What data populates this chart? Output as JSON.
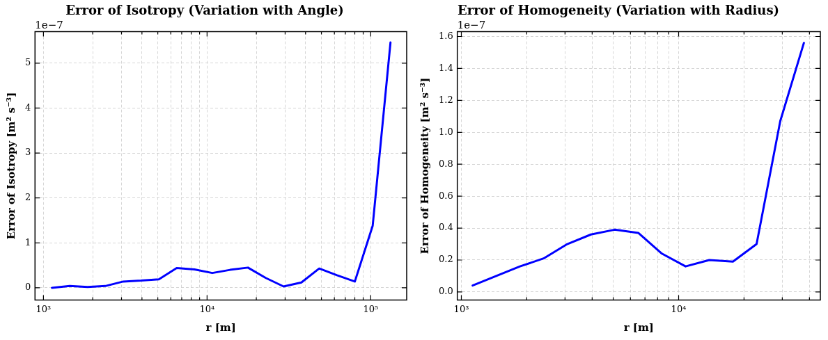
{
  "chart_data": [
    {
      "type": "line",
      "title": "Error of Isotropy (Variation with Angle)",
      "xlabel": "r [m]",
      "ylabel": "Error of Isotropy [m² s⁻³]",
      "annotations": [
        "1e−7"
      ],
      "x": [
        1127,
        1448,
        1861,
        2391,
        3073,
        3948,
        5074,
        6520,
        8378,
        10766,
        13834,
        17777,
        22844,
        29355,
        37721,
        48472,
        62287,
        80040,
        102851,
        132164
      ],
      "values": [
        0.0,
        0.04,
        0.02,
        0.04,
        0.14,
        0.16,
        0.19,
        0.44,
        0.41,
        0.33,
        0.4,
        0.45,
        0.22,
        0.03,
        0.12,
        0.43,
        0.28,
        0.14,
        1.38,
        5.46
      ],
      "color": "#0000ff",
      "log": "x",
      "grid": true,
      "xlim": [
        888,
        166000
      ],
      "xticks": [
        {
          "value": 1000,
          "label": "10³"
        },
        {
          "value": 2000,
          "label": null
        },
        {
          "value": 3000,
          "label": null
        },
        {
          "value": 4000,
          "label": null
        },
        {
          "value": 5000,
          "label": null
        },
        {
          "value": 6000,
          "label": null
        },
        {
          "value": 7000,
          "label": null
        },
        {
          "value": 8000,
          "label": null
        },
        {
          "value": 9000,
          "label": null
        },
        {
          "value": 10000,
          "label": "10⁴"
        },
        {
          "value": 20000,
          "label": null
        },
        {
          "value": 30000,
          "label": null
        },
        {
          "value": 40000,
          "label": null
        },
        {
          "value": 50000,
          "label": null
        },
        {
          "value": 60000,
          "label": null
        },
        {
          "value": 70000,
          "label": null
        },
        {
          "value": 80000,
          "label": null
        },
        {
          "value": 90000,
          "label": null
        },
        {
          "value": 100000,
          "label": "10⁵"
        }
      ],
      "ylim": [
        -0.27,
        5.7
      ],
      "yticks": [
        0,
        1,
        2,
        3,
        4,
        5
      ]
    },
    {
      "type": "line",
      "title": "Error of Homogeneity (Variation with Radius)",
      "xlabel": "r [m]",
      "ylabel": "Error of Homogeneity [m² s⁻³]",
      "annotations": [
        "1e−7"
      ],
      "x": [
        1127,
        1448,
        1861,
        2391,
        3073,
        3948,
        5074,
        6520,
        8378,
        10766,
        13834,
        17777,
        22844,
        29355,
        37721
      ],
      "values": [
        0.04,
        0.1,
        0.16,
        0.21,
        0.3,
        0.36,
        0.39,
        0.37,
        0.24,
        0.16,
        0.2,
        0.19,
        0.3,
        1.07,
        1.56
      ],
      "color": "#0000ff",
      "log": "x",
      "grid": true,
      "xlim": [
        958,
        44900
      ],
      "xticks": [
        {
          "value": 1000,
          "label": "10³"
        },
        {
          "value": 2000,
          "label": null
        },
        {
          "value": 3000,
          "label": null
        },
        {
          "value": 4000,
          "label": null
        },
        {
          "value": 5000,
          "label": null
        },
        {
          "value": 6000,
          "label": null
        },
        {
          "value": 7000,
          "label": null
        },
        {
          "value": 8000,
          "label": null
        },
        {
          "value": 9000,
          "label": null
        },
        {
          "value": 10000,
          "label": "10⁴"
        },
        {
          "value": 20000,
          "label": null
        },
        {
          "value": 30000,
          "label": null
        },
        {
          "value": 40000,
          "label": null
        }
      ],
      "ylim": [
        -0.05,
        1.63
      ],
      "yticks": [
        {
          "value": 0,
          "label": "0.0"
        },
        0.2,
        0.4,
        0.6,
        0.8,
        {
          "value": 1,
          "label": "1.0"
        },
        1.2,
        1.4,
        1.6
      ]
    }
  ]
}
